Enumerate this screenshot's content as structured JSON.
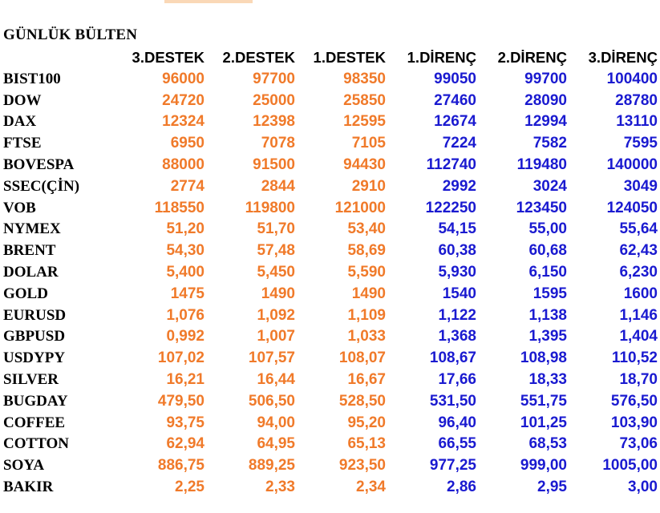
{
  "title": "GÜNLÜK BÜLTEN",
  "colors": {
    "support": "#f07a2a",
    "resistance": "#1a1ad0",
    "label": "#000000"
  },
  "headers": [
    "",
    "3.DESTEK",
    "2.DESTEK",
    "1.DESTEK",
    "1.DİRENÇ",
    "2.DİRENÇ",
    "3.DİRENÇ"
  ],
  "rows": [
    {
      "name": "BIST100",
      "values": [
        "96000",
        "97700",
        "98350",
        "99050",
        "99700",
        "100400"
      ]
    },
    {
      "name": "DOW",
      "values": [
        "24720",
        "25000",
        "25850",
        "27460",
        "28090",
        "28780"
      ]
    },
    {
      "name": "DAX",
      "values": [
        "12324",
        "12398",
        "12595",
        "12674",
        "12994",
        "13110"
      ]
    },
    {
      "name": "FTSE",
      "values": [
        "6950",
        "7078",
        "7105",
        "7224",
        "7582",
        "7595"
      ]
    },
    {
      "name": "BOVESPA",
      "values": [
        "88000",
        "91500",
        "94430",
        "112740",
        "119480",
        "140000"
      ]
    },
    {
      "name": "SSEC(ÇİN)",
      "values": [
        "2774",
        "2844",
        "2910",
        "2992",
        "3024",
        "3049"
      ]
    },
    {
      "name": "VOB",
      "values": [
        "118550",
        "119800",
        "121000",
        "122250",
        "123450",
        "124050"
      ]
    },
    {
      "name": "NYMEX",
      "values": [
        "51,20",
        "51,70",
        "53,40",
        "54,15",
        "55,00",
        "55,64"
      ]
    },
    {
      "name": "BRENT",
      "values": [
        "54,30",
        "57,48",
        "58,69",
        "60,38",
        "60,68",
        "62,43"
      ]
    },
    {
      "name": "DOLAR",
      "values": [
        "5,400",
        "5,450",
        "5,590",
        "5,930",
        "6,150",
        "6,230"
      ]
    },
    {
      "name": "GOLD",
      "values": [
        "1475",
        "1490",
        "1490",
        "1540",
        "1595",
        "1600"
      ]
    },
    {
      "name": "EURUSD",
      "values": [
        "1,076",
        "1,092",
        "1,109",
        "1,122",
        "1,138",
        "1,146"
      ]
    },
    {
      "name": "GBPUSD",
      "values": [
        "0,992",
        "1,007",
        "1,033",
        "1,368",
        "1,395",
        "1,404"
      ]
    },
    {
      "name": "USDYPY",
      "values": [
        "107,02",
        "107,57",
        "108,07",
        "108,67",
        "108,98",
        "110,52"
      ]
    },
    {
      "name": "SILVER",
      "values": [
        "16,21",
        "16,44",
        "16,67",
        "17,66",
        "18,33",
        "18,70"
      ]
    },
    {
      "name": "BUGDAY",
      "values": [
        "479,50",
        "506,50",
        "528,50",
        "531,50",
        "551,75",
        "576,50"
      ]
    },
    {
      "name": "COFFEE",
      "values": [
        "93,75",
        "94,00",
        "95,20",
        "96,40",
        "101,25",
        "103,90"
      ]
    },
    {
      "name": "COTTON",
      "values": [
        "62,94",
        "64,95",
        "65,13",
        "66,55",
        "68,53",
        "73,06"
      ]
    },
    {
      "name": "SOYA",
      "values": [
        "886,75",
        "889,25",
        "923,50",
        "977,25",
        "999,00",
        "1005,00"
      ]
    },
    {
      "name": "BAKIR",
      "values": [
        "2,25",
        "2,33",
        "2,34",
        "2,86",
        "2,95",
        "3,00"
      ]
    }
  ]
}
